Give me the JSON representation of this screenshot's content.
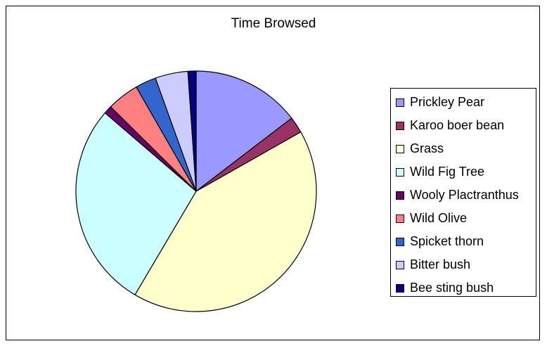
{
  "chart_data": {
    "type": "pie",
    "title": "Time Browsed",
    "legend_position": "right",
    "slices": [
      {
        "name": "Prickley Pear",
        "value": 14.6,
        "color": "#9999ff"
      },
      {
        "name": "Karoo boer bean",
        "value": 2.2,
        "color": "#993366"
      },
      {
        "name": "Grass",
        "value": 41.7,
        "color": "#ffffcc"
      },
      {
        "name": "Wild Fig Tree",
        "value": 27.8,
        "color": "#ccffff"
      },
      {
        "name": "Wooly Plactranthus",
        "value": 1.1,
        "color": "#660066"
      },
      {
        "name": "Wild Olive",
        "value": 4.3,
        "color": "#ff8080"
      },
      {
        "name": "Spicket thorn",
        "value": 2.8,
        "color": "#3366cc"
      },
      {
        "name": "Bitter bush",
        "value": 4.4,
        "color": "#ccccff"
      },
      {
        "name": "Bee sting bush",
        "value": 1.1,
        "color": "#000080"
      }
    ]
  }
}
